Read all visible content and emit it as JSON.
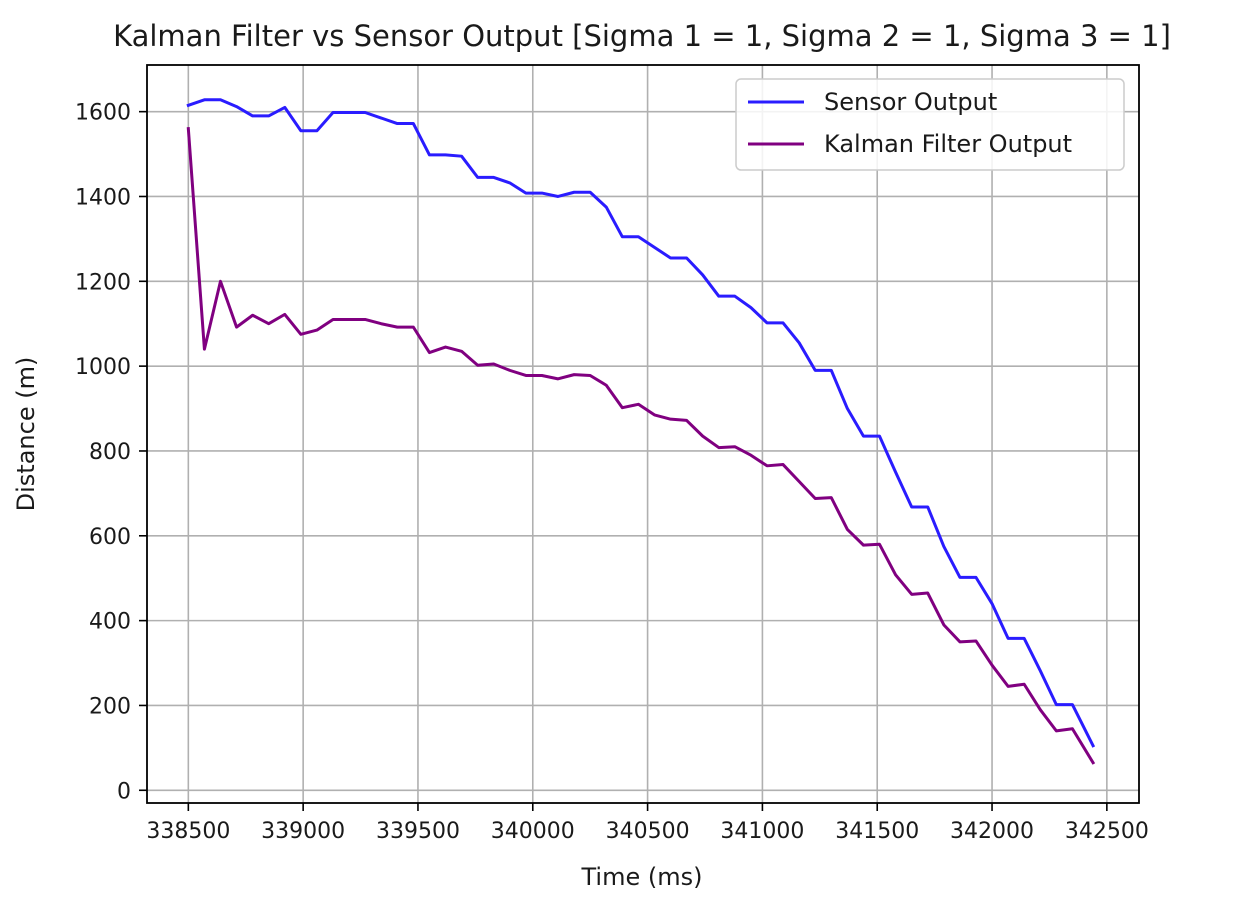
{
  "chart_data": {
    "type": "line",
    "title": "Kalman Filter vs Sensor Output [Sigma 1 = 1, Sigma 2 = 1, Sigma 3 = 1]",
    "xlabel": "Time (ms)",
    "ylabel": "Distance (m)",
    "xlim": [
      338320,
      342640
    ],
    "ylim": [
      -30,
      1710
    ],
    "xticks": [
      338500,
      339000,
      339500,
      340000,
      340500,
      341000,
      341500,
      342000,
      342500
    ],
    "yticks": [
      0,
      200,
      400,
      600,
      800,
      1000,
      1200,
      1400,
      1600
    ],
    "grid": true,
    "legend_position": "top-right",
    "series": [
      {
        "name": "Sensor Output",
        "color": "#2a1cff",
        "x": [
          338500,
          338570,
          338640,
          338710,
          338780,
          338850,
          338920,
          338990,
          339060,
          339130,
          339200,
          339270,
          339340,
          339410,
          339480,
          339550,
          339620,
          339690,
          339760,
          339830,
          339900,
          339970,
          340040,
          340110,
          340180,
          340250,
          340320,
          340390,
          340460,
          340530,
          340600,
          340670,
          340740,
          340810,
          340880,
          340950,
          341020,
          341090,
          341160,
          341230,
          341300,
          341370,
          341440,
          341510,
          341580,
          341650,
          341720,
          341790,
          341860,
          341930,
          342000,
          342070,
          342140,
          342210,
          342280,
          342350,
          342440
        ],
        "y": [
          1615,
          1628,
          1628,
          1612,
          1590,
          1590,
          1610,
          1555,
          1555,
          1598,
          1598,
          1598,
          1585,
          1572,
          1572,
          1498,
          1498,
          1495,
          1445,
          1445,
          1432,
          1408,
          1408,
          1400,
          1410,
          1410,
          1375,
          1305,
          1305,
          1280,
          1255,
          1255,
          1215,
          1165,
          1165,
          1138,
          1102,
          1102,
          1055,
          990,
          990,
          900,
          835,
          835,
          750,
          668,
          668,
          575,
          502,
          502,
          440,
          358,
          358,
          282,
          202,
          202,
          105
        ]
      },
      {
        "name": "Kalman Filter Output",
        "color": "#800080",
        "x": [
          338500,
          338570,
          338640,
          338710,
          338780,
          338850,
          338920,
          338990,
          339060,
          339130,
          339200,
          339270,
          339340,
          339410,
          339480,
          339550,
          339620,
          339690,
          339760,
          339830,
          339900,
          339970,
          340040,
          340110,
          340180,
          340250,
          340320,
          340390,
          340460,
          340530,
          340600,
          340670,
          340740,
          340810,
          340880,
          340950,
          341020,
          341090,
          341160,
          341230,
          341300,
          341370,
          341440,
          341510,
          341580,
          341650,
          341720,
          341790,
          341860,
          341930,
          342000,
          342070,
          342140,
          342210,
          342280,
          342350,
          342440
        ],
        "y": [
          1560,
          1040,
          1200,
          1092,
          1120,
          1100,
          1122,
          1075,
          1085,
          1110,
          1110,
          1110,
          1100,
          1092,
          1092,
          1032,
          1045,
          1035,
          1002,
          1005,
          990,
          978,
          978,
          970,
          980,
          978,
          955,
          902,
          910,
          885,
          875,
          872,
          835,
          808,
          810,
          790,
          765,
          768,
          728,
          688,
          690,
          615,
          578,
          580,
          508,
          462,
          465,
          390,
          350,
          352,
          295,
          245,
          250,
          190,
          140,
          145,
          65
        ]
      }
    ]
  }
}
